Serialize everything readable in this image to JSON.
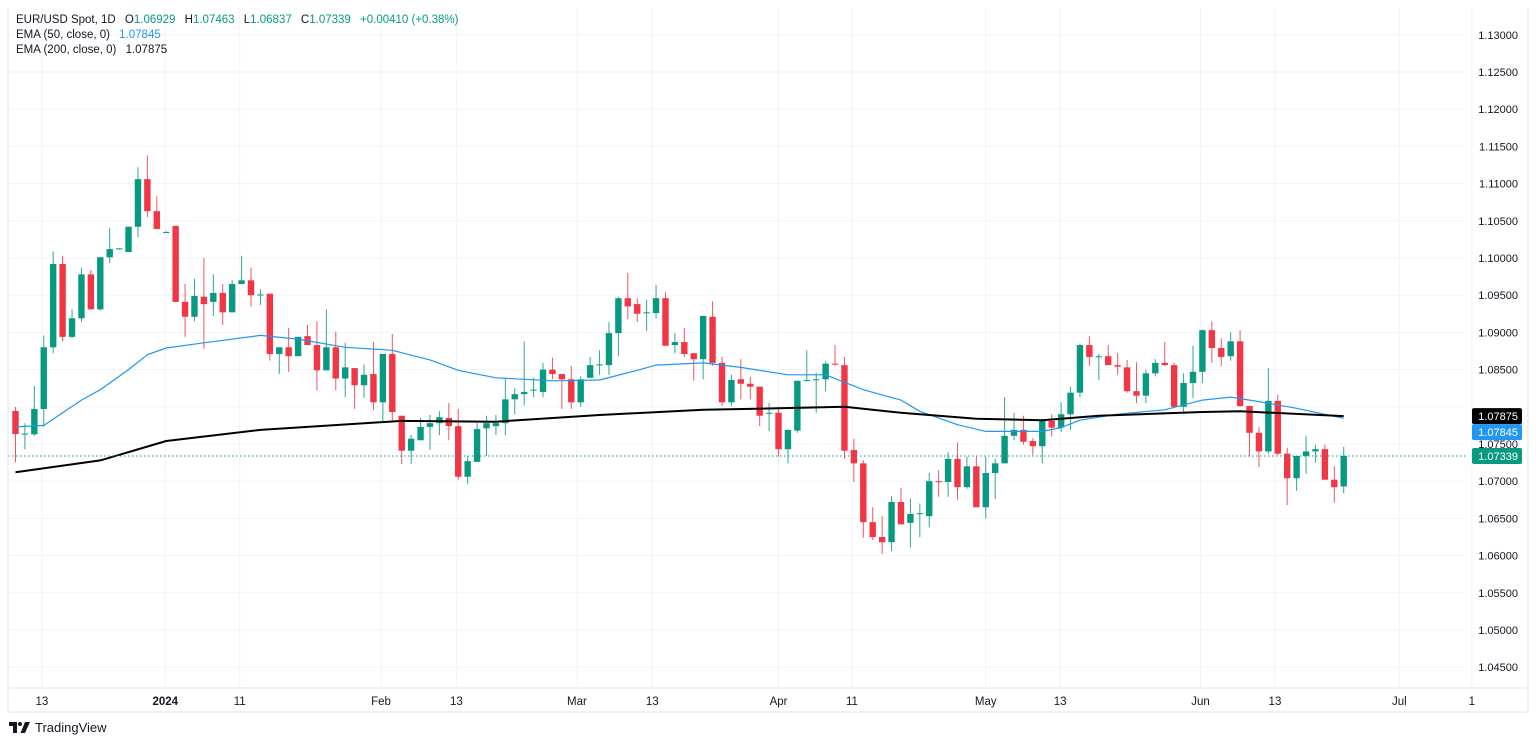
{
  "legend": {
    "symbol": "EUR/USD Spot, 1D",
    "o_label": "O",
    "o_value": "1.06929",
    "h_label": "H",
    "h_value": "1.07463",
    "l_label": "L",
    "l_value": "1.06837",
    "c_label": "C",
    "c_value": "1.07339",
    "change": "+0.00410 (+0.38%)",
    "ema50_label": "EMA (50, close, 0)",
    "ema50_value": "1.07845",
    "ema200_label": "EMA (200, close, 0)",
    "ema200_value": "1.07875"
  },
  "brand": {
    "name": "TradingView"
  },
  "colors": {
    "up": "#089981",
    "down": "#f23645",
    "ema50": "#2196f3",
    "ema200": "#000000",
    "grid": "#f0f3fa",
    "text": "#131722"
  },
  "chart_data": {
    "type": "candlestick",
    "title": "EUR/USD Spot, 1D",
    "ylim": [
      1.0425,
      1.134
    ],
    "y_ticks": [
      "1.04500",
      "1.05000",
      "1.05500",
      "1.06000",
      "1.06500",
      "1.07000",
      "1.07500",
      "1.08000",
      "1.08500",
      "1.09000",
      "1.09500",
      "1.10000",
      "1.10500",
      "1.11000",
      "1.11500",
      "1.12000",
      "1.12500",
      "1.13000"
    ],
    "x_ticks": [
      {
        "label": "13",
        "index": 2.8,
        "bold": false
      },
      {
        "label": "2024",
        "index": 15.9,
        "bold": true
      },
      {
        "label": "11",
        "index": 23.8,
        "bold": false
      },
      {
        "label": "Feb",
        "index": 38.8,
        "bold": false
      },
      {
        "label": "13",
        "index": 46.8,
        "bold": false
      },
      {
        "label": "Mar",
        "index": 59.6,
        "bold": false
      },
      {
        "label": "13",
        "index": 67.6,
        "bold": false
      },
      {
        "label": "Apr",
        "index": 81.0,
        "bold": false
      },
      {
        "label": "11",
        "index": 88.8,
        "bold": false
      },
      {
        "label": "May",
        "index": 103.0,
        "bold": false
      },
      {
        "label": "13",
        "index": 110.9,
        "bold": false
      },
      {
        "label": "Jun",
        "index": 125.8,
        "bold": false
      },
      {
        "label": "13",
        "index": 133.7,
        "bold": false
      },
      {
        "label": "Jul",
        "index": 146.9,
        "bold": false
      },
      {
        "label": "1",
        "index": 154.6,
        "bold": false
      }
    ],
    "candles_ohlc": [
      [
        1.07944,
        1.07997,
        1.07255,
        1.07634
      ],
      [
        1.0763,
        1.0778,
        1.0743,
        1.0764
      ],
      [
        1.0763,
        1.0828,
        1.0761,
        1.0797
      ],
      [
        1.0797,
        1.0896,
        1.0773,
        1.088
      ],
      [
        1.088,
        1.1009,
        1.0872,
        1.0992
      ],
      [
        1.0992,
        1.1003,
        1.0888,
        1.0894
      ],
      [
        1.0894,
        1.0931,
        1.0892,
        1.0919
      ],
      [
        1.0919,
        1.0987,
        1.0914,
        1.0978
      ],
      [
        1.0978,
        1.0984,
        1.0931,
        1.0931
      ],
      [
        1.0931,
        1.1001,
        1.0929,
        1.1001
      ],
      [
        1.1001,
        1.104,
        1.0993,
        1.1012
      ],
      [
        1.1012,
        1.1013,
        1.1011,
        1.1013
      ],
      [
        1.1008,
        1.1042,
        1.1008,
        1.1042
      ],
      [
        1.1042,
        1.1122,
        1.1028,
        1.1106
      ],
      [
        1.1106,
        1.1138,
        1.1055,
        1.1063
      ],
      [
        1.1063,
        1.1083,
        1.1039,
        1.1039
      ],
      [
        1.1035,
        1.1036,
        1.1034,
        1.1035
      ],
      [
        1.1043,
        1.1043,
        1.0941,
        1.0941
      ],
      [
        1.0941,
        1.0965,
        1.0894,
        1.0921
      ],
      [
        1.0921,
        1.0972,
        1.0915,
        1.0949
      ],
      [
        1.0948,
        1.1,
        1.0878,
        1.0938
      ],
      [
        1.0941,
        1.0978,
        1.0922,
        1.0953
      ],
      [
        1.0953,
        1.0965,
        1.091,
        1.0927
      ],
      [
        1.0927,
        1.097,
        1.0927,
        1.0965
      ],
      [
        1.0965,
        1.1003,
        1.0965,
        1.097
      ],
      [
        1.097,
        1.0987,
        1.0935,
        1.095
      ],
      [
        1.095,
        1.0958,
        1.0937,
        1.0951
      ],
      [
        1.0952,
        1.0952,
        1.0862,
        1.0871
      ],
      [
        1.0871,
        1.088,
        1.0844,
        1.088
      ],
      [
        1.088,
        1.0906,
        1.0847,
        1.0868
      ],
      [
        1.0868,
        1.0894,
        1.0868,
        1.0894
      ],
      [
        1.0895,
        1.091,
        1.0883,
        1.0883
      ],
      [
        1.0883,
        1.0915,
        1.0822,
        1.0849
      ],
      [
        1.0849,
        1.0931,
        1.0849,
        1.088
      ],
      [
        1.088,
        1.0901,
        1.0822,
        1.0838
      ],
      [
        1.0838,
        1.0886,
        1.0813,
        1.0853
      ],
      [
        1.0852,
        1.0852,
        1.0797,
        1.0829
      ],
      [
        1.0829,
        1.0857,
        1.0812,
        1.0843
      ],
      [
        1.0844,
        1.0887,
        1.0796,
        1.0806
      ],
      [
        1.0806,
        1.0871,
        1.0781,
        1.0871
      ],
      [
        1.0871,
        1.0898,
        1.0781,
        1.0793
      ],
      [
        1.0788,
        1.0788,
        1.0723,
        1.0741
      ],
      [
        1.0741,
        1.0762,
        1.0723,
        1.0757
      ],
      [
        1.0755,
        1.0785,
        1.0755,
        1.0773
      ],
      [
        1.0773,
        1.0789,
        1.0742,
        1.0778
      ],
      [
        1.0778,
        1.0794,
        1.0762,
        1.0786
      ],
      [
        1.0785,
        1.0805,
        1.0755,
        1.0774
      ],
      [
        1.0774,
        1.0797,
        1.0702,
        1.0706
      ],
      [
        1.0706,
        1.0734,
        1.0696,
        1.0727
      ],
      [
        1.0726,
        1.0778,
        1.0726,
        1.077
      ],
      [
        1.0771,
        1.0788,
        1.0734,
        1.0778
      ],
      [
        1.0774,
        1.0789,
        1.0762,
        1.0778
      ],
      [
        1.0778,
        1.0839,
        1.0762,
        1.081
      ],
      [
        1.081,
        1.0825,
        1.079,
        1.0817
      ],
      [
        1.0817,
        1.0888,
        1.0802,
        1.082
      ],
      [
        1.0822,
        1.0839,
        1.0813,
        1.0823
      ],
      [
        1.082,
        1.0859,
        1.0813,
        1.085
      ],
      [
        1.085,
        1.0866,
        1.0837,
        1.0844
      ],
      [
        1.0844,
        1.0844,
        1.0797,
        1.0837
      ],
      [
        1.0837,
        1.0855,
        1.0797,
        1.0806
      ],
      [
        1.0806,
        1.0841,
        1.08,
        1.0837
      ],
      [
        1.0839,
        1.0867,
        1.0839,
        1.0856
      ],
      [
        1.0856,
        1.0876,
        1.0843,
        1.0857
      ],
      [
        1.0856,
        1.0914,
        1.0843,
        1.0899
      ],
      [
        1.0899,
        1.0948,
        1.0868,
        1.0946
      ],
      [
        1.0946,
        1.098,
        1.0918,
        1.0935
      ],
      [
        1.0938,
        1.0946,
        1.0914,
        1.0925
      ],
      [
        1.0926,
        1.0944,
        1.0902,
        1.0927
      ],
      [
        1.0926,
        1.0964,
        1.0919,
        1.0946
      ],
      [
        1.0946,
        1.0954,
        1.0882,
        1.0882
      ],
      [
        1.0883,
        1.0899,
        1.0872,
        1.0887
      ],
      [
        1.0887,
        1.0906,
        1.0867,
        1.0871
      ],
      [
        1.0872,
        1.0872,
        1.0835,
        1.0864
      ],
      [
        1.0864,
        1.0922,
        1.0837,
        1.0922
      ],
      [
        1.0921,
        1.0942,
        1.0855,
        1.0859
      ],
      [
        1.0859,
        1.0867,
        1.0801,
        1.0806
      ],
      [
        1.0806,
        1.0843,
        1.0801,
        1.0836
      ],
      [
        1.0837,
        1.0864,
        1.081,
        1.0831
      ],
      [
        1.0831,
        1.084,
        1.081,
        1.0827
      ],
      [
        1.0827,
        1.0827,
        1.0774,
        1.0788
      ],
      [
        1.0791,
        1.0805,
        1.0767,
        1.0792
      ],
      [
        1.0792,
        1.08,
        1.0733,
        1.0743
      ],
      [
        1.0743,
        1.0769,
        1.0724,
        1.0769
      ],
      [
        1.0768,
        1.0835,
        1.0765,
        1.0835
      ],
      [
        1.0835,
        1.0876,
        1.0834,
        1.0836
      ],
      [
        1.0836,
        1.0846,
        1.0792,
        1.0837
      ],
      [
        1.0837,
        1.0861,
        1.0821,
        1.0858
      ],
      [
        1.0858,
        1.0883,
        1.0855,
        1.0857
      ],
      [
        1.0856,
        1.0867,
        1.073,
        1.0741
      ],
      [
        1.0742,
        1.0757,
        1.0699,
        1.0724
      ],
      [
        1.0724,
        1.0728,
        1.0624,
        1.0645
      ],
      [
        1.0645,
        1.0665,
        1.0621,
        1.0625
      ],
      [
        1.0625,
        1.0653,
        1.0602,
        1.0618
      ],
      [
        1.0618,
        1.068,
        1.0606,
        1.0672
      ],
      [
        1.0672,
        1.0691,
        1.0642,
        1.0642
      ],
      [
        1.0644,
        1.0677,
        1.0611,
        1.0656
      ],
      [
        1.0656,
        1.067,
        1.0625,
        1.0657
      ],
      [
        1.0653,
        1.0711,
        1.0638,
        1.07
      ],
      [
        1.07,
        1.0715,
        1.0679,
        1.0699
      ],
      [
        1.0699,
        1.0739,
        1.0679,
        1.073
      ],
      [
        1.073,
        1.0752,
        1.0675,
        1.0692
      ],
      [
        1.0692,
        1.0733,
        1.069,
        1.072
      ],
      [
        1.072,
        1.0733,
        1.0665,
        1.0665
      ],
      [
        1.0665,
        1.0733,
        1.065,
        1.0711
      ],
      [
        1.0711,
        1.073,
        1.0676,
        1.0724
      ],
      [
        1.0724,
        1.0813,
        1.0724,
        1.0761
      ],
      [
        1.0761,
        1.0792,
        1.0755,
        1.0769
      ],
      [
        1.0769,
        1.0788,
        1.0749,
        1.0753
      ],
      [
        1.0754,
        1.0758,
        1.0735,
        1.0747
      ],
      [
        1.0747,
        1.0784,
        1.0724,
        1.0782
      ],
      [
        1.0781,
        1.079,
        1.076,
        1.0772
      ],
      [
        1.0772,
        1.0806,
        1.0766,
        1.079
      ],
      [
        1.079,
        1.0827,
        1.0769,
        1.0819
      ],
      [
        1.0819,
        1.0885,
        1.0813,
        1.0883
      ],
      [
        1.0883,
        1.0895,
        1.0855,
        1.0867
      ],
      [
        1.0867,
        1.0871,
        1.0836,
        1.0868
      ],
      [
        1.0868,
        1.0883,
        1.0856,
        1.0856
      ],
      [
        1.0856,
        1.0872,
        1.0843,
        1.0854
      ],
      [
        1.0853,
        1.0863,
        1.0819,
        1.0821
      ],
      [
        1.0821,
        1.086,
        1.0805,
        1.0815
      ],
      [
        1.0815,
        1.085,
        1.0805,
        1.0845
      ],
      [
        1.0845,
        1.0864,
        1.0841,
        1.0859
      ],
      [
        1.0859,
        1.0887,
        1.0855,
        1.0856
      ],
      [
        1.0856,
        1.0859,
        1.08,
        1.08
      ],
      [
        1.08,
        1.0845,
        1.079,
        1.0832
      ],
      [
        1.0832,
        1.0882,
        1.0812,
        1.0847
      ],
      [
        1.0847,
        1.0904,
        1.0832,
        1.0903
      ],
      [
        1.0903,
        1.0915,
        1.0859,
        1.0879
      ],
      [
        1.0879,
        1.0892,
        1.0855,
        1.0867
      ],
      [
        1.0868,
        1.09,
        1.0862,
        1.0888
      ],
      [
        1.0888,
        1.0903,
        1.08,
        1.0801
      ],
      [
        1.0801,
        1.0802,
        1.0733,
        1.0765
      ],
      [
        1.0765,
        1.0773,
        1.0719,
        1.074
      ],
      [
        1.074,
        1.0852,
        1.0737,
        1.0808
      ],
      [
        1.0808,
        1.0816,
        1.0735,
        1.0737
      ],
      [
        1.0737,
        1.0745,
        1.0668,
        1.0704
      ],
      [
        1.0704,
        1.0734,
        1.0687,
        1.0734
      ],
      [
        1.0734,
        1.0761,
        1.071,
        1.074
      ],
      [
        1.074,
        1.0749,
        1.0725,
        1.0743
      ],
      [
        1.0743,
        1.0749,
        1.0702,
        1.0702
      ],
      [
        1.0702,
        1.072,
        1.0671,
        1.0692
      ],
      [
        1.06929,
        1.07463,
        1.06837,
        1.07339
      ]
    ],
    "ema50": [
      [
        0,
        1.0773
      ],
      [
        3,
        1.0775
      ],
      [
        5,
        1.0792
      ],
      [
        7,
        1.0809
      ],
      [
        9,
        1.0823
      ],
      [
        12,
        1.085
      ],
      [
        14,
        1.087
      ],
      [
        16,
        1.0879
      ],
      [
        20,
        1.0886
      ],
      [
        26,
        1.0896
      ],
      [
        30,
        1.0891
      ],
      [
        35,
        1.088
      ],
      [
        40,
        1.0876
      ],
      [
        44,
        1.0863
      ],
      [
        47,
        1.0849
      ],
      [
        51,
        1.0839
      ],
      [
        57,
        1.0835
      ],
      [
        62,
        1.0836
      ],
      [
        66,
        1.0849
      ],
      [
        68,
        1.0856
      ],
      [
        73,
        1.0859
      ],
      [
        77,
        1.0853
      ],
      [
        82,
        1.0843
      ],
      [
        86,
        1.0843
      ],
      [
        90,
        1.0823
      ],
      [
        94,
        1.0809
      ],
      [
        96,
        1.0794
      ],
      [
        100,
        1.0776
      ],
      [
        103,
        1.0767
      ],
      [
        109,
        1.0767
      ],
      [
        111,
        1.0772
      ],
      [
        113,
        1.0782
      ],
      [
        117,
        1.079
      ],
      [
        122,
        1.0796
      ],
      [
        126,
        1.0809
      ],
      [
        129,
        1.0813
      ],
      [
        132,
        1.0807
      ],
      [
        136,
        1.0798
      ],
      [
        141,
        1.07845
      ]
    ],
    "ema200": [
      [
        0,
        1.0712
      ],
      [
        9,
        1.0728
      ],
      [
        16,
        1.0754
      ],
      [
        26,
        1.0769
      ],
      [
        41,
        1.0781
      ],
      [
        51,
        1.078
      ],
      [
        62,
        1.0789
      ],
      [
        73,
        1.0796
      ],
      [
        81,
        1.0798
      ],
      [
        88,
        1.08
      ],
      [
        94,
        1.0792
      ],
      [
        102,
        1.0784
      ],
      [
        109,
        1.0782
      ],
      [
        115,
        1.0788
      ],
      [
        126,
        1.0793
      ],
      [
        130,
        1.0794
      ],
      [
        141,
        1.07875
      ]
    ],
    "price_labels": [
      {
        "text": "1.07875",
        "value": 1.07875,
        "bg": "#000000"
      },
      {
        "text": "1.07845",
        "value": 1.07845,
        "bg": "#2196f3"
      },
      {
        "text": "1.07339",
        "value": 1.07339,
        "bg": "#089981"
      }
    ],
    "current_price": 1.07339
  }
}
